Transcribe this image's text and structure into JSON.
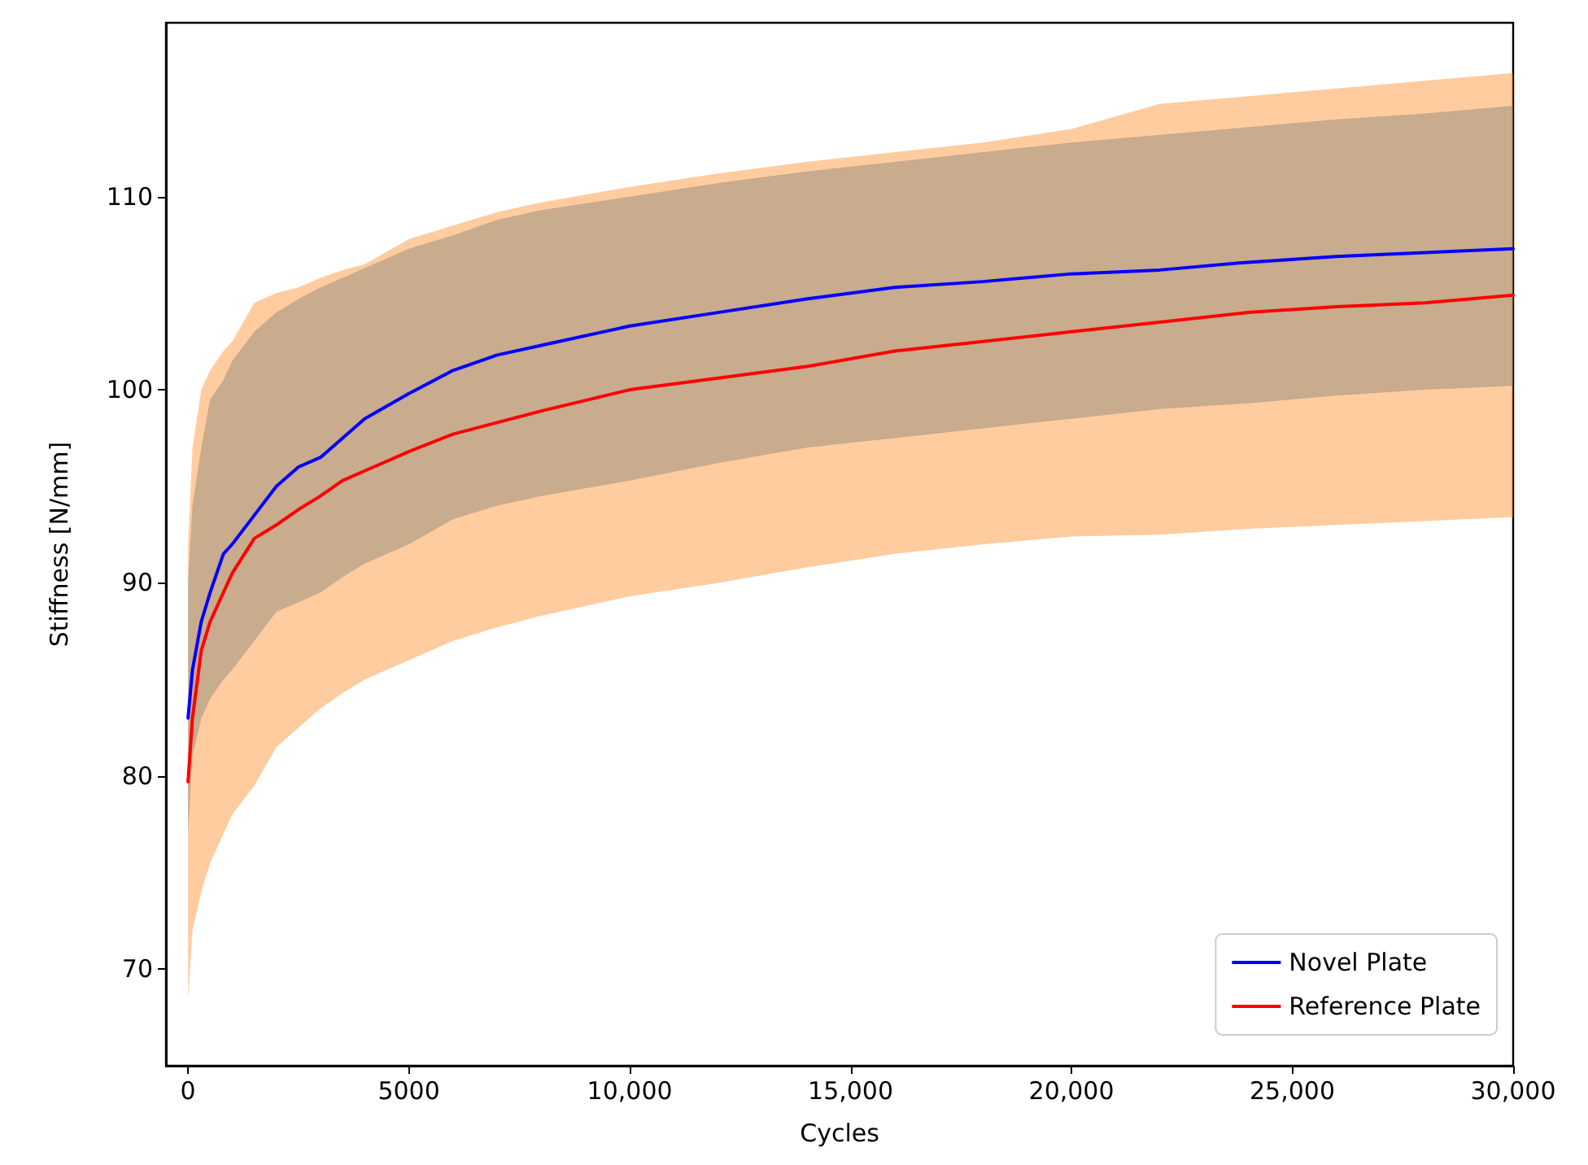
{
  "chart_data": {
    "type": "line",
    "xlabel": "Cycles",
    "ylabel": "Stiffness [N/mm]",
    "x": [
      0,
      100,
      300,
      500,
      800,
      1000,
      1500,
      2000,
      2500,
      3000,
      3500,
      4000,
      5000,
      6000,
      7000,
      8000,
      10000,
      12000,
      14000,
      16000,
      18000,
      20000,
      22000,
      24000,
      26000,
      28000,
      30000
    ],
    "series": [
      {
        "name": "Novel Plate",
        "color": "#0000ff",
        "values": [
          83,
          85.5,
          88,
          89.5,
          91.5,
          92,
          93.5,
          95,
          96,
          96.5,
          97.5,
          98.5,
          99.8,
          101,
          101.8,
          102.3,
          103.3,
          104,
          104.7,
          105.3,
          105.6,
          106,
          106.2,
          106.6,
          106.9,
          107.1,
          107.3
        ],
        "lower": [
          77,
          81,
          83,
          84,
          85,
          85.5,
          87,
          88.5,
          89,
          89.5,
          90.3,
          91,
          92,
          93.3,
          94,
          94.5,
          95.3,
          96.2,
          97,
          97.5,
          98,
          98.5,
          99,
          99.3,
          99.7,
          100,
          100.2
        ],
        "upper": [
          90,
          94,
          97,
          99.5,
          100.5,
          101.5,
          103,
          104,
          104.7,
          105.3,
          105.8,
          106.3,
          107.3,
          108,
          108.8,
          109.3,
          110,
          110.7,
          111.3,
          111.8,
          112.3,
          112.8,
          113.2,
          113.6,
          114,
          114.3,
          114.7
        ]
      },
      {
        "name": "Reference Plate",
        "color": "#ff0000",
        "values": [
          79.7,
          83,
          86.5,
          88,
          89.5,
          90.5,
          92.3,
          93,
          93.8,
          94.5,
          95.3,
          95.8,
          96.8,
          97.7,
          98.3,
          98.9,
          100,
          100.6,
          101.2,
          102,
          102.5,
          103,
          103.5,
          104,
          104.3,
          104.5,
          104.9
        ],
        "lower": [
          68.5,
          72,
          74,
          75.5,
          77,
          78,
          79.5,
          81.5,
          82.5,
          83.5,
          84.3,
          85,
          86,
          87,
          87.7,
          88.3,
          89.3,
          90,
          90.8,
          91.5,
          92,
          92.4,
          92.5,
          92.8,
          93,
          93.2,
          93.4
        ],
        "upper": [
          92,
          97,
          100,
          101,
          102,
          102.5,
          104.5,
          105,
          105.3,
          105.8,
          106.2,
          106.5,
          107.8,
          108.5,
          109.2,
          109.7,
          110.5,
          111.2,
          111.8,
          112.3,
          112.8,
          113.5,
          114.8,
          115.2,
          115.6,
          116,
          116.4
        ]
      }
    ],
    "xlim": [
      -500,
      30000
    ],
    "xticks": [
      0,
      5000,
      {
        "value": 10000,
        "label": "10,000"
      },
      {
        "value": 15000,
        "label": "15,000"
      },
      {
        "value": 20000,
        "label": "20,000"
      },
      {
        "value": 25000,
        "label": "25,000"
      },
      {
        "value": 30000,
        "label": "30,000"
      }
    ],
    "ylim": [
      65,
      119
    ],
    "yticks": [
      70,
      80,
      90,
      100,
      110
    ],
    "grid": false,
    "legend": "bottom right",
    "marker": "none",
    "line_style": "solid"
  }
}
